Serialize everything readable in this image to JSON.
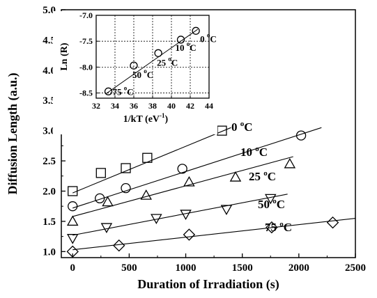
{
  "chart_data": [
    {
      "type": "scatter",
      "xlabel": "Duration of Irradiation (s)",
      "ylabel": "Diffusion Length (a.u.)",
      "xlim": [
        -100,
        2500
      ],
      "ylim": [
        0.9,
        5.0
      ],
      "xticks": [
        0,
        500,
        1000,
        1500,
        2000,
        2500
      ],
      "yticks": [
        1.0,
        1.5,
        2.0,
        2.5,
        3.0,
        3.5,
        4.0,
        4.5,
        5.0
      ],
      "grid": false,
      "series": [
        {
          "name": "0 °C",
          "label_base": "0",
          "label_sup": "o",
          "label_unit": "C",
          "marker": "square",
          "x": [
            0,
            250,
            470,
            660,
            1320
          ],
          "y": [
            2.0,
            2.3,
            2.38,
            2.55,
            3.0
          ],
          "fit": {
            "x": [
              0,
              1400
            ],
            "y": [
              1.97,
              3.05
            ]
          }
        },
        {
          "name": "10 °C",
          "label_base": "10",
          "label_sup": "o",
          "label_unit": "C",
          "marker": "circle",
          "x": [
            0,
            240,
            470,
            970,
            2020
          ],
          "y": [
            1.75,
            1.88,
            2.05,
            2.37,
            2.92
          ],
          "fit": {
            "x": [
              0,
              2200
            ],
            "y": [
              1.72,
              3.05
            ]
          }
        },
        {
          "name": "25 °C",
          "label_base": "25",
          "label_sup": "o",
          "label_unit": "C",
          "marker": "triangle-up",
          "x": [
            0,
            310,
            650,
            1030,
            1440,
            1920
          ],
          "y": [
            1.5,
            1.82,
            1.93,
            2.15,
            2.23,
            2.45
          ],
          "fit": {
            "x": [
              0,
              1950
            ],
            "y": [
              1.58,
              2.57
            ]
          }
        },
        {
          "name": "50 °C",
          "label_base": "50",
          "label_sup": "o",
          "label_unit": "C",
          "marker": "triangle-down",
          "x": [
            0,
            300,
            740,
            1000,
            1360,
            1750
          ],
          "y": [
            1.22,
            1.4,
            1.55,
            1.62,
            1.7,
            1.88
          ],
          "fit": {
            "x": [
              0,
              1900
            ],
            "y": [
              1.27,
              1.95
            ]
          }
        },
        {
          "name": "75 °C",
          "label_base": "75",
          "label_sup": "o",
          "label_unit": "C",
          "marker": "diamond",
          "x": [
            0,
            410,
            1030,
            1760,
            2300
          ],
          "y": [
            1.0,
            1.1,
            1.28,
            1.4,
            1.48
          ],
          "fit": {
            "x": [
              0,
              2500
            ],
            "y": [
              1.03,
              1.55
            ]
          }
        }
      ]
    },
    {
      "type": "scatter",
      "inset": true,
      "xlabel_base": "1/kT (eV",
      "xlabel_sup": "-1",
      "xlabel_end": ")",
      "ylabel": "Ln (R)",
      "xlim": [
        32,
        44
      ],
      "ylim": [
        -8.6,
        -7.0
      ],
      "xticks": [
        32,
        34,
        36,
        38,
        40,
        42,
        44
      ],
      "yticks": [
        -8.5,
        -8.0,
        -7.5,
        -7.0
      ],
      "grid": true,
      "series": [
        {
          "marker": "circle",
          "x": [
            33.3,
            36.0,
            38.6,
            41.0,
            42.6
          ],
          "y": [
            -8.47,
            -7.97,
            -7.73,
            -7.47,
            -7.3
          ],
          "labels": [
            {
              "base": "75",
              "sup": "o",
              "unit": "C"
            },
            {
              "base": "50",
              "sup": "o",
              "unit": "C"
            },
            {
              "base": "25",
              "sup": "o",
              "unit": "C"
            },
            {
              "base": "10",
              "sup": "o",
              "unit": "C"
            },
            {
              "base": "0",
              "sup": "o",
              "unit": "C"
            }
          ],
          "fit": {
            "x": [
              33.0,
              42.8
            ],
            "y": [
              -8.52,
              -7.27
            ]
          }
        }
      ]
    }
  ]
}
